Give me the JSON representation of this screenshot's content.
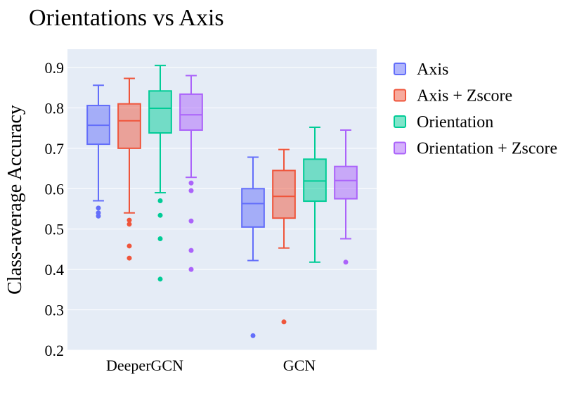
{
  "chart_data": {
    "type": "box",
    "title": "Orientations vs Axis",
    "xlabel": "",
    "ylabel": "Class-average Accuracy",
    "ylim": [
      0.2,
      0.94
    ],
    "yticks": [
      0.2,
      0.3,
      0.4,
      0.5,
      0.6,
      0.7,
      0.8,
      0.9
    ],
    "ytick_labels": [
      "0.2",
      "0.3",
      "0.4",
      "0.5",
      "0.6",
      "0.7",
      "0.8",
      "0.9"
    ],
    "categories": [
      "DeeperGCN",
      "GCN"
    ],
    "legend_position": "top-right",
    "series": [
      {
        "name": "Axis",
        "color": "#636efa",
        "fill": "rgba(99,110,250,0.5)",
        "boxes": [
          {
            "min": 0.57,
            "q1": 0.71,
            "median": 0.757,
            "q3": 0.806,
            "max": 0.856,
            "outliers": [
              0.552,
              0.54,
              0.532
            ]
          },
          {
            "min": 0.422,
            "q1": 0.505,
            "median": 0.563,
            "q3": 0.6,
            "max": 0.678,
            "outliers": [
              0.236
            ]
          }
        ]
      },
      {
        "name": "Axis + Zscore",
        "color": "#ef553b",
        "fill": "rgba(239,85,59,0.5)",
        "boxes": [
          {
            "min": 0.54,
            "q1": 0.7,
            "median": 0.768,
            "q3": 0.81,
            "max": 0.873,
            "outliers": [
              0.522,
              0.512,
              0.458,
              0.428
            ]
          },
          {
            "min": 0.453,
            "q1": 0.527,
            "median": 0.581,
            "q3": 0.645,
            "max": 0.697,
            "outliers": [
              0.27
            ]
          }
        ]
      },
      {
        "name": "Orientation",
        "color": "#00cc96",
        "fill": "rgba(0,204,150,0.5)",
        "boxes": [
          {
            "min": 0.59,
            "q1": 0.738,
            "median": 0.799,
            "q3": 0.842,
            "max": 0.905,
            "outliers": [
              0.57,
              0.534,
              0.476,
              0.376
            ]
          },
          {
            "min": 0.418,
            "q1": 0.569,
            "median": 0.619,
            "q3": 0.673,
            "max": 0.752,
            "outliers": []
          }
        ]
      },
      {
        "name": "Orientation + Zscore",
        "color": "#ab63fa",
        "fill": "rgba(171,99,250,0.5)",
        "boxes": [
          {
            "min": 0.628,
            "q1": 0.745,
            "median": 0.783,
            "q3": 0.834,
            "max": 0.88,
            "outliers": [
              0.614,
              0.595,
              0.52,
              0.447,
              0.4
            ]
          },
          {
            "min": 0.476,
            "q1": 0.575,
            "median": 0.62,
            "q3": 0.655,
            "max": 0.745,
            "outliers": [
              0.418
            ]
          }
        ]
      }
    ]
  }
}
